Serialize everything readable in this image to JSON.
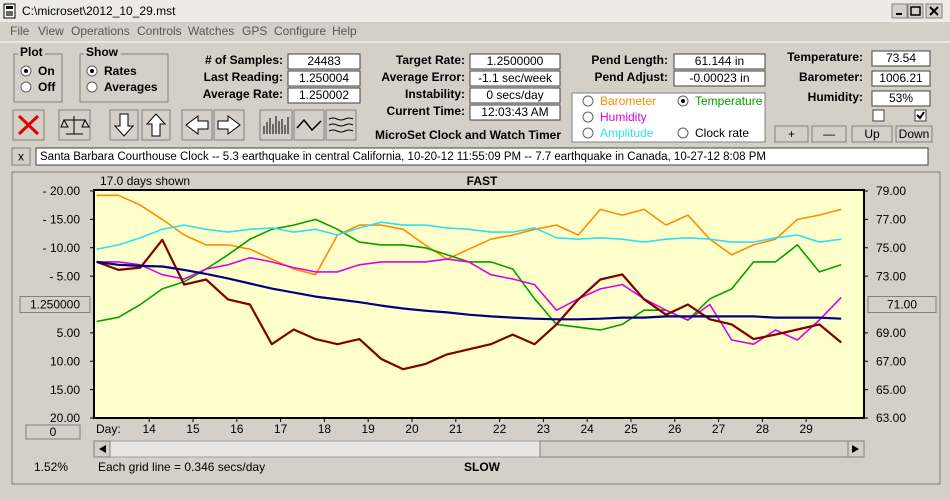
{
  "window": {
    "title": "C:\\microset\\2012_10_29.mst",
    "menu": [
      "File",
      "View",
      "Operations",
      "Controls",
      "Watches",
      "GPS",
      "Configure",
      "Help"
    ],
    "plot_group": {
      "label": "Plot",
      "options": [
        "On",
        "Off"
      ],
      "selected": 0
    },
    "show_group": {
      "label": "Show",
      "options": [
        "Rates",
        "Averages"
      ],
      "selected": 0
    },
    "fields": [
      {
        "label": "# of Samples:",
        "value": "24483"
      },
      {
        "label": "Last Reading:",
        "value": "1.250004"
      },
      {
        "label": "Average Rate:",
        "value": "1.250002"
      },
      {
        "label": "Target Rate:",
        "value": "1.2500000"
      },
      {
        "label": "Average Error:",
        "value": "-1.1 sec/week"
      },
      {
        "label": "Instability:",
        "value": "0 secs/day"
      },
      {
        "label": "Current Time:",
        "value": "12:03:43 AM"
      },
      {
        "label": "Pend Length:",
        "value": "61.144 in"
      },
      {
        "label": "Pend Adjust:",
        "value": "-0.00023 in"
      },
      {
        "label": "Temperature:",
        "value": "73.54"
      },
      {
        "label": "Barometer:",
        "value": "1006.21"
      },
      {
        "label": "Humidity:",
        "value": "53%"
      }
    ],
    "app_title": "MicroSet Clock and Watch Timer",
    "trace_buttons": [
      "+",
      "—",
      "Up",
      "Down"
    ],
    "checkboxes": [
      false,
      true
    ],
    "ticker_close": "x",
    "ticker": "Santa Barbara Courthouse Clock  -- 5.3 earthquake in central California, 10-20-12 11:55:09 PM  -- 7.7 earthquake in Canada, 10-27-12 8:08 PM"
  },
  "chart_data": {
    "type": "line",
    "title": "FAST",
    "bottom_label": "SLOW",
    "days_shown": "17.0 days shown",
    "grid_note": "Each grid line = 0.346 secs/day",
    "scale_percent": "1.52%",
    "offset_button": "0",
    "x_label": "Day:",
    "selected_series": 1,
    "x": [
      12.8,
      13.3,
      13.8,
      14.3,
      14.8,
      15.3,
      15.8,
      16.3,
      16.8,
      17.3,
      17.8,
      18.3,
      18.8,
      19.3,
      19.8,
      20.3,
      20.8,
      21.3,
      21.8,
      22.3,
      22.8,
      23.3,
      23.8,
      24.3,
      24.8,
      25.3,
      25.8,
      26.3,
      26.8,
      27.3,
      27.8,
      28.3,
      28.8,
      29.3,
      29.8
    ],
    "xlim": [
      12.74,
      30.32
    ],
    "xticks": [
      14,
      15,
      16,
      17,
      18,
      19,
      20,
      21,
      22,
      23,
      24,
      25,
      26,
      27,
      28,
      29
    ],
    "ylim": [
      -20,
      20
    ],
    "yticks": [
      {
        "value": 20,
        "label": "- 20.00"
      },
      {
        "value": 15,
        "label": "- 15.00"
      },
      {
        "value": 10,
        "label": "- 10.00"
      },
      {
        "value": 5,
        "label": "- 5.00"
      },
      {
        "value": 0,
        "label": "1.250000"
      },
      {
        "value": -5,
        "label": "5.00"
      },
      {
        "value": -10,
        "label": "10.00"
      },
      {
        "value": -15,
        "label": "15.00"
      },
      {
        "value": -20,
        "label": "20.00"
      }
    ],
    "y2lim": [
      63,
      79
    ],
    "y2ticks": [
      {
        "value": 79,
        "label": "79.00"
      },
      {
        "value": 77,
        "label": "77.00"
      },
      {
        "value": 75,
        "label": "75.00"
      },
      {
        "value": 73,
        "label": "73.00"
      },
      {
        "value": 71,
        "label": "71.00"
      },
      {
        "value": 69,
        "label": "69.00"
      },
      {
        "value": 67,
        "label": "67.00"
      },
      {
        "value": 65,
        "label": "65.00"
      },
      {
        "value": 63,
        "label": "63.00"
      }
    ],
    "center_ticks": [
      4,
      4
    ],
    "series": [
      {
        "name": "Barometer",
        "color": "#ff8c00",
        "axis": "y2",
        "values": [
          78.7,
          78.7,
          78.0,
          77.0,
          75.9,
          75.2,
          75.2,
          74.9,
          74.2,
          73.5,
          73.1,
          75.9,
          76.6,
          76.6,
          76.3,
          75.2,
          74.2,
          74.9,
          75.6,
          75.9,
          76.3,
          76.6,
          75.9,
          77.7,
          77.3,
          77.7,
          76.6,
          77.3,
          75.6,
          74.5,
          75.2,
          75.6,
          77.0,
          77.3,
          77.7
        ]
      },
      {
        "name": "Temperature",
        "color": "#00a000",
        "axis": "y2",
        "values": [
          69.8,
          70.1,
          71.0,
          72.1,
          72.6,
          73.5,
          74.5,
          75.6,
          76.3,
          76.6,
          77.0,
          76.3,
          75.4,
          75.2,
          75.2,
          75.0,
          74.5,
          74.0,
          74.0,
          73.5,
          71.4,
          69.6,
          69.4,
          69.2,
          69.6,
          70.6,
          70.6,
          69.9,
          71.4,
          72.1,
          74.0,
          74.0,
          75.2,
          73.3,
          73.8
        ]
      },
      {
        "name": "Humidity",
        "color": "#e000e0",
        "axis": "y2",
        "values": [
          74.0,
          74.0,
          73.8,
          73.1,
          72.8,
          73.5,
          73.8,
          74.3,
          74.0,
          73.6,
          73.3,
          73.3,
          73.8,
          74.0,
          74.0,
          74.0,
          74.2,
          74.0,
          73.1,
          72.8,
          72.4,
          70.6,
          71.4,
          72.1,
          72.4,
          71.4,
          70.6,
          69.9,
          71.0,
          68.5,
          68.2,
          69.2,
          68.5,
          69.9,
          71.5
        ]
      },
      {
        "name": "Amplitude",
        "color": "#30e0f0",
        "axis": "y2",
        "values": [
          74.9,
          75.2,
          75.7,
          76.3,
          76.6,
          76.3,
          76.1,
          76.3,
          76.4,
          76.1,
          76.3,
          75.9,
          76.4,
          76.8,
          76.6,
          76.6,
          76.4,
          76.3,
          76.1,
          76.1,
          76.4,
          75.7,
          75.6,
          75.7,
          75.6,
          75.4,
          75.6,
          75.7,
          75.6,
          75.4,
          75.4,
          75.7,
          75.9,
          75.4,
          75.6
        ]
      },
      {
        "name": "Clock rate",
        "color": "#800000",
        "values": [
          7.5,
          6.1,
          6.5,
          11.4,
          3.5,
          4.4,
          0.9,
          0,
          -7,
          -4.4,
          -6.1,
          -7,
          -6.1,
          -9.6,
          -11.4,
          -10.5,
          -8.8,
          -7.9,
          -7,
          -5.3,
          -7,
          -3.5,
          0.9,
          4.4,
          5.3,
          0.9,
          -1.8,
          0,
          -2.6,
          -3.5,
          -6.1,
          -5.3,
          -4.4,
          -3.5,
          -6.7
        ]
      },
      {
        "color": "#000080",
        "values": [
          7.5,
          7.0,
          6.8,
          6.7,
          6.1,
          5.4,
          4.6,
          3.7,
          2.8,
          2.1,
          1.4,
          0.9,
          0.4,
          -0.2,
          -0.7,
          -1.1,
          -1.4,
          -1.8,
          -2.1,
          -2.3,
          -2.5,
          -2.6,
          -2.6,
          -2.5,
          -2.3,
          -2.3,
          -2.1,
          -2.1,
          -2.1,
          -2.1,
          -2.1,
          -2.3,
          -2.3,
          -2.3,
          -2.5
        ]
      }
    ]
  }
}
